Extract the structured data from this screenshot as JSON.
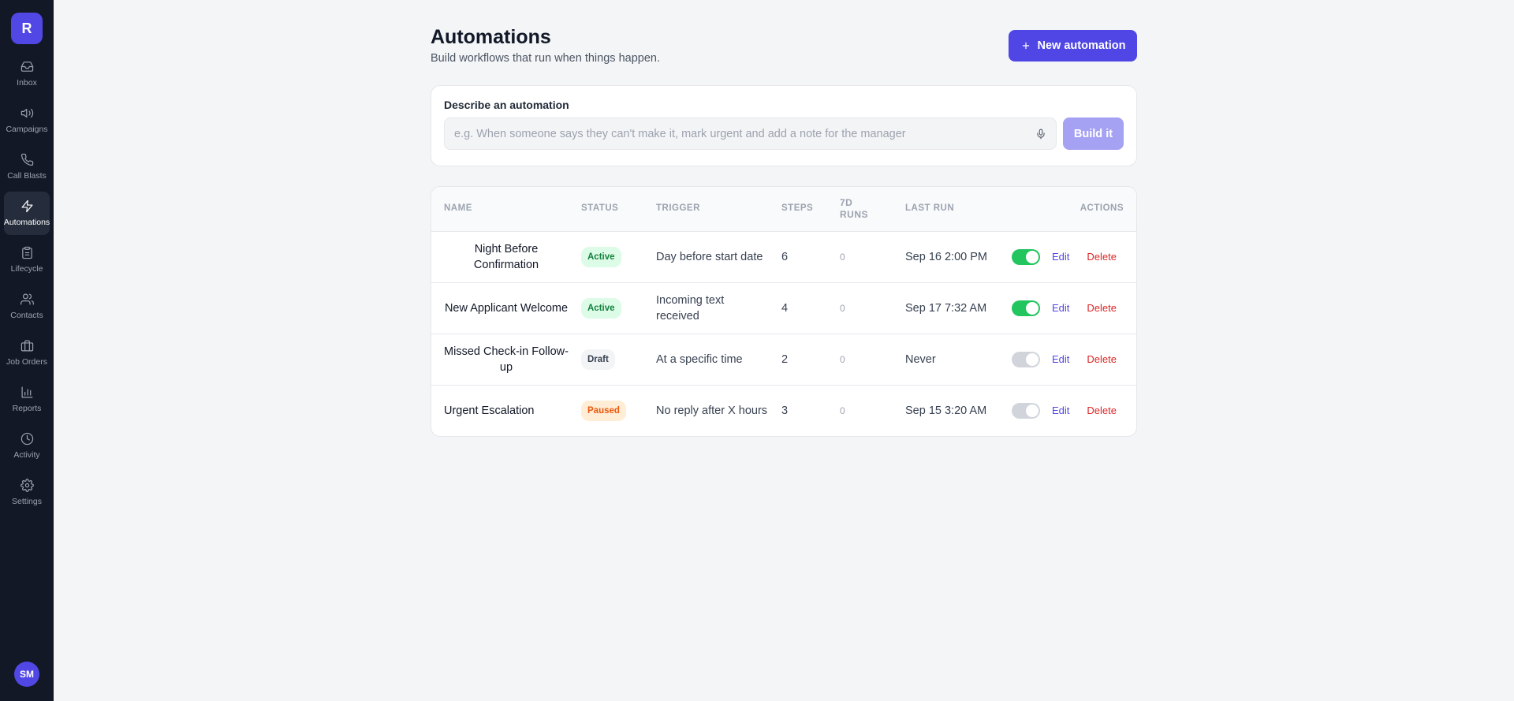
{
  "sidebar": {
    "logo": "R",
    "items": [
      {
        "label": "Inbox",
        "icon": "inbox-icon"
      },
      {
        "label": "Campaigns",
        "icon": "megaphone-icon"
      },
      {
        "label": "Call Blasts",
        "icon": "phone-icon"
      },
      {
        "label": "Automations",
        "icon": "lightning-icon",
        "active": true
      },
      {
        "label": "Lifecycle",
        "icon": "clipboard-icon"
      },
      {
        "label": "Contacts",
        "icon": "users-icon"
      },
      {
        "label": "Job Orders",
        "icon": "briefcase-icon"
      },
      {
        "label": "Reports",
        "icon": "bar-chart-icon"
      },
      {
        "label": "Activity",
        "icon": "clock-icon"
      },
      {
        "label": "Settings",
        "icon": "gear-icon"
      }
    ],
    "user_initials": "SM"
  },
  "header": {
    "title": "Automations",
    "subtitle": "Build workflows that run when things happen.",
    "new_button_label": "New automation"
  },
  "describe": {
    "label": "Describe an automation",
    "value": "",
    "placeholder": "e.g. When someone says they can't make it, mark urgent and add a note for the manager",
    "build_label": "Build it"
  },
  "table": {
    "headers": {
      "name": "Name",
      "status": "Status",
      "trigger": "Trigger",
      "steps": "Steps",
      "runs_line1": "7D",
      "runs_line2": "Runs",
      "last_run": "Last Run",
      "actions": "Actions"
    },
    "rows": [
      {
        "name": "Night Before Confirmation",
        "status": "Active",
        "trigger": "Day before start date",
        "steps": "6",
        "runs": "0",
        "last_run": "Sep 16 2:00 PM",
        "enabled": true,
        "edit": "Edit",
        "delete": "Delete"
      },
      {
        "name": "New Applicant Welcome",
        "status": "Active",
        "trigger": "Incoming text received",
        "steps": "4",
        "runs": "0",
        "last_run": "Sep 17 7:32 AM",
        "enabled": true,
        "edit": "Edit",
        "delete": "Delete"
      },
      {
        "name": "Missed Check-in Follow-up",
        "status": "Draft",
        "trigger": "At a specific time",
        "steps": "2",
        "runs": "0",
        "last_run": "Never",
        "enabled": false,
        "edit": "Edit",
        "delete": "Delete"
      },
      {
        "name": "Urgent Escalation",
        "status": "Paused",
        "trigger": "No reply after X hours",
        "steps": "3",
        "runs": "0",
        "last_run": "Sep 15 3:20 AM",
        "enabled": false,
        "edit": "Edit",
        "delete": "Delete"
      }
    ]
  },
  "colors": {
    "brand": "#4f46e5",
    "sidebar_bg": "#121826",
    "active_green": "#22c55e",
    "delete_red": "#dc2626"
  }
}
